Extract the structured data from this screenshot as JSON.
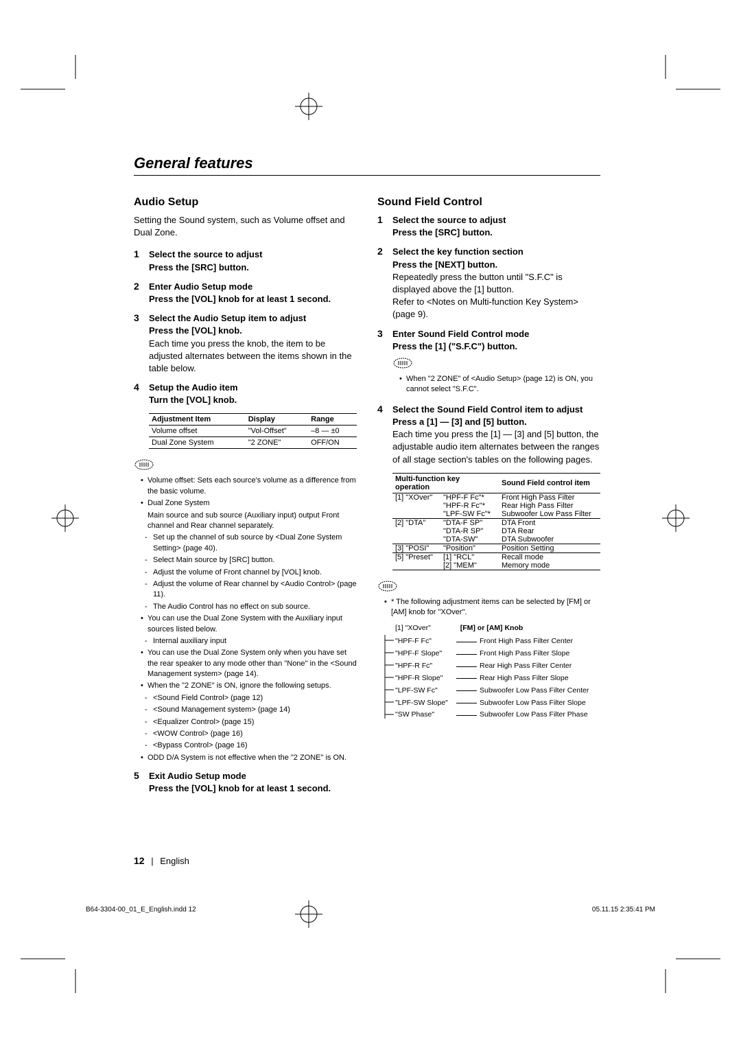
{
  "section_title": "General features",
  "page_number": "12",
  "page_lang": "English",
  "footer": {
    "file": "B64-3304-00_01_E_English.indd   12",
    "timestamp": "05.11.15   2:35:41 PM"
  },
  "audio": {
    "heading": "Audio Setup",
    "intro": "Setting the Sound system, such as Volume offset and Dual Zone.",
    "steps": [
      {
        "n": "1",
        "title": "Select the source to adjust",
        "sub": "Press the [SRC] button.",
        "text": ""
      },
      {
        "n": "2",
        "title": "Enter Audio Setup mode",
        "sub": "Press the [VOL] knob for at least 1 second.",
        "text": ""
      },
      {
        "n": "3",
        "title": "Select the Audio Setup item to adjust",
        "sub": "Press the [VOL] knob.",
        "text": "Each time you press the knob, the item to be adjusted alternates between the items shown in the table below."
      },
      {
        "n": "4",
        "title": "Setup the Audio item",
        "sub": "Turn the [VOL] knob.",
        "text": ""
      },
      {
        "n": "5",
        "title": "Exit Audio Setup mode",
        "sub": "Press the [VOL] knob for at least 1 second.",
        "text": ""
      }
    ],
    "table": {
      "headers": [
        "Adjustment Item",
        "Display",
        "Range"
      ],
      "rows": [
        [
          "Volume offset",
          "\"Vol-Offset\"",
          "–8 — ±0"
        ],
        [
          "Dual Zone System",
          "\"2 ZONE\"",
          "OFF/ON"
        ]
      ]
    },
    "notes": [
      {
        "type": "bullet",
        "text": "Volume offset: Sets each source's volume as a difference from the basic volume."
      },
      {
        "type": "bullet",
        "text": "Dual Zone System"
      },
      {
        "type": "plain",
        "text": "Main source and sub source (Auxiliary input) output Front channel and Rear channel separately."
      },
      {
        "type": "dash",
        "text": "Set up the channel of sub source by <Dual Zone System Setting> (page 40)."
      },
      {
        "type": "dash",
        "text": "Select Main source by [SRC] button."
      },
      {
        "type": "dash",
        "text": "Adjust the volume of Front channel by [VOL] knob."
      },
      {
        "type": "dash",
        "text": "Adjust the volume of Rear channel by <Audio Control> (page 11)."
      },
      {
        "type": "dash",
        "text": "The Audio Control has no effect on sub source."
      },
      {
        "type": "bullet",
        "text": "You can use the Dual Zone System with the Auxiliary input sources listed below."
      },
      {
        "type": "dash",
        "text": "Internal auxiliary input"
      },
      {
        "type": "bullet",
        "text": "You can use the Dual Zone System only when you have set the rear speaker to any mode other than \"None\" in the <Sound Management system> (page 14)."
      },
      {
        "type": "bullet",
        "text": "When the \"2 ZONE\" is ON, ignore the following setups."
      },
      {
        "type": "dash",
        "text": "<Sound Field Control> (page 12)"
      },
      {
        "type": "dash",
        "text": "<Sound Management system> (page 14)"
      },
      {
        "type": "dash",
        "text": "<Equalizer Control> (page 15)"
      },
      {
        "type": "dash",
        "text": "<WOW Control> (page 16)"
      },
      {
        "type": "dash",
        "text": "<Bypass Control> (page 16)"
      },
      {
        "type": "bullet",
        "text": "ODD D/A System is not effective when the \"2 ZONE\" is ON."
      }
    ]
  },
  "sfc": {
    "heading": "Sound Field Control",
    "steps": [
      {
        "n": "1",
        "title": "Select the source to adjust",
        "sub": "Press the [SRC] button.",
        "text": ""
      },
      {
        "n": "2",
        "title": "Select the key function section",
        "sub": "Press the [NEXT] button.",
        "text": "Repeatedly press the button until \"S.F.C\" is displayed above the [1] button.\nRefer to <Notes on Multi-function Key System> (page 9)."
      },
      {
        "n": "3",
        "title": "Enter Sound Field Control mode",
        "sub": "Press the [1] (\"S.F.C\") button.",
        "text": ""
      },
      {
        "n": "4",
        "title": "Select the Sound Field Control item to adjust",
        "sub": "Press a [1] — [3] and [5] button.",
        "text": "Each time you press the [1] — [3] and [5] button, the adjustable audio item alternates between the ranges of all stage section's tables on the following pages."
      }
    ],
    "step3_note": "When \"2 ZONE\" of <Audio Setup> (page 12) is ON, you cannot select \"S.F.C\".",
    "mf_table": {
      "headers": [
        "Multi-function key operation",
        "",
        "Sound Field control item"
      ],
      "rows": [
        {
          "c1": "[1] \"XOver\"",
          "c2": "\"HPF-F Fc\"*",
          "c3": "Front High Pass Filter",
          "sep": false
        },
        {
          "c1": "",
          "c2": "\"HPF-R Fc\"*",
          "c3": "Rear High Pass Filter",
          "sep": false
        },
        {
          "c1": "",
          "c2": "\"LPF-SW Fc\"*",
          "c3": "Subwoofer Low Pass Filter",
          "sep": true
        },
        {
          "c1": "[2] \"DTA\"",
          "c2": "\"DTA-F SP\"",
          "c3": "DTA Front",
          "sep": false
        },
        {
          "c1": "",
          "c2": "\"DTA-R SP\"",
          "c3": "DTA Rear",
          "sep": false
        },
        {
          "c1": "",
          "c2": "\"DTA-SW\"",
          "c3": "DTA Subwoofer",
          "sep": true
        },
        {
          "c1": "[3] \"POSI\"",
          "c2": "\"Position\"",
          "c3": "Position Setting",
          "sep": true
        },
        {
          "c1": "[5] \"Preset\"",
          "c2": "[1] \"RCL\"",
          "c3": "Recall mode",
          "sep": false
        },
        {
          "c1": "",
          "c2": "[2] \"MEM\"",
          "c3": "Memory mode",
          "sep": true
        }
      ]
    },
    "xover_note": "* The following adjustment items can be selected by [FM] or [AM] knob for \"XOver\".",
    "xover_header_left": "[1] \"XOver\"",
    "xover_header_right": "[FM] or [AM] Knob",
    "xover_rows": [
      {
        "lbl": "\"HPF-F Fc\"",
        "desc": "Front High Pass Filter Center"
      },
      {
        "lbl": "\"HPF-F Slope\"",
        "desc": "Front High Pass Filter Slope"
      },
      {
        "lbl": "\"HPF-R Fc\"",
        "desc": "Rear High Pass Filter Center"
      },
      {
        "lbl": "\"HPF-R Slope\"",
        "desc": "Rear High Pass Filter Slope"
      },
      {
        "lbl": "\"LPF-SW Fc\"",
        "desc": "Subwoofer Low Pass Filter Center"
      },
      {
        "lbl": "\"LPF-SW Slope\"",
        "desc": "Subwoofer Low Pass Filter Slope"
      },
      {
        "lbl": "\"SW Phase\"",
        "desc": "Subwoofer Low Pass Filter Phase"
      }
    ]
  }
}
